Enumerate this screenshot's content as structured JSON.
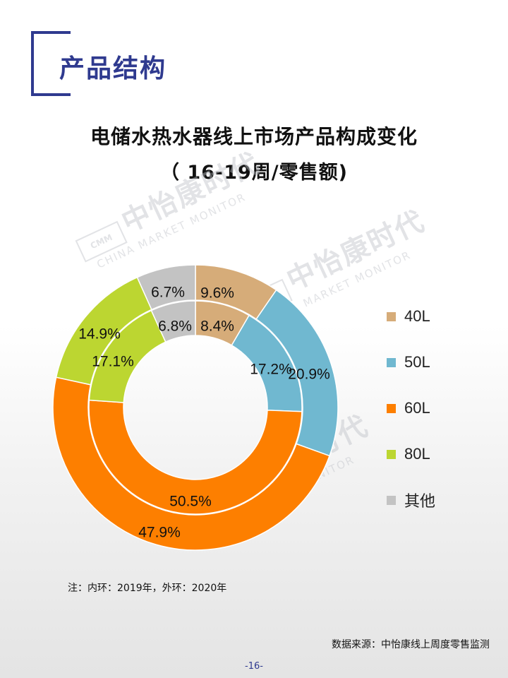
{
  "section": {
    "title": "产品结构"
  },
  "chart_title": {
    "line1": "电储水热水器线上市场产品构成变化",
    "line2": "（ 16-19周/零售额)"
  },
  "watermark": {
    "cn": "中怡康时代",
    "en": "CHINA MARKET MONITOR",
    "logo": "CMM"
  },
  "chart_data": {
    "type": "donut",
    "title": "电储水热水器线上市场产品构成变化",
    "subtitle": "（ 16-19周/零售额)",
    "categories": [
      "40L",
      "50L",
      "60L",
      "80L",
      "其他"
    ],
    "colors": [
      "#d6ac79",
      "#70b8d0",
      "#fd7f00",
      "#bcd631",
      "#c3c3c3"
    ],
    "series": [
      {
        "ring": "inner",
        "values": [
          8.4,
          17.2,
          50.5,
          17.1,
          6.8
        ],
        "labels": [
          "8.4%",
          "17.2%",
          "50.5%",
          "17.1%",
          "6.8%"
        ]
      },
      {
        "ring": "outer",
        "values": [
          9.6,
          20.9,
          47.9,
          14.9,
          6.7
        ],
        "labels": [
          "9.6%",
          "20.9%",
          "47.9%",
          "14.9%",
          "6.7%"
        ]
      }
    ],
    "legend_position": "right"
  },
  "note": "注：内环：2019年，外环：2020年",
  "source": "数据来源：中怡康线上周度零售监测",
  "page_number": "-16-"
}
